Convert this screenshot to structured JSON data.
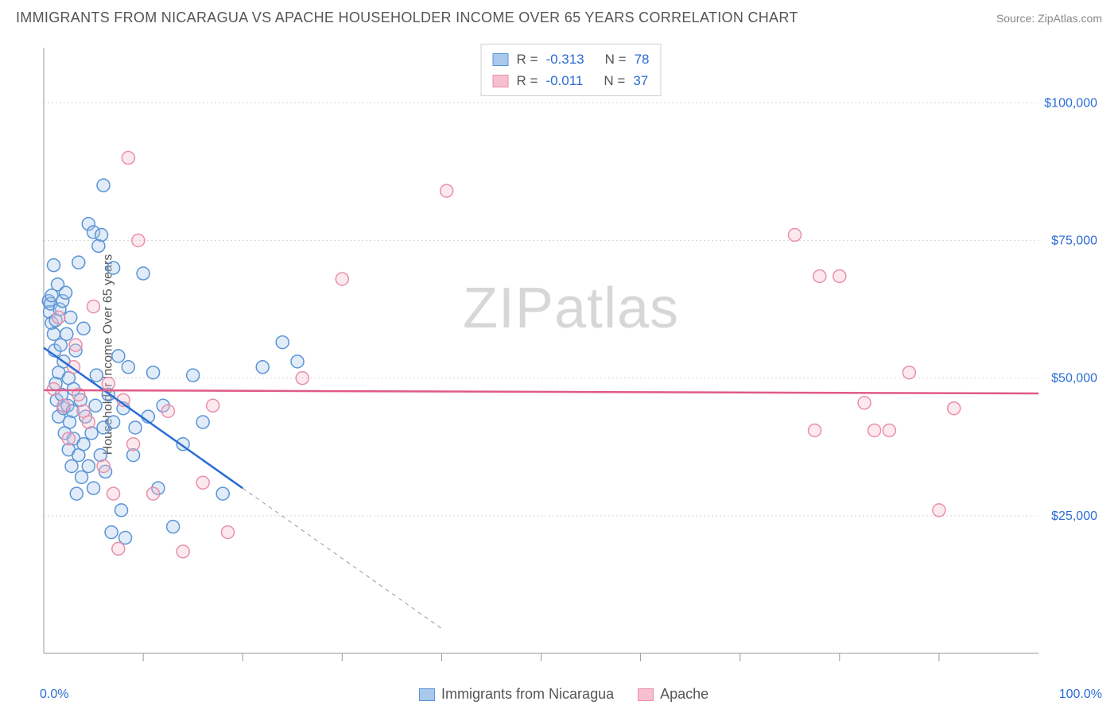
{
  "title": "IMMIGRANTS FROM NICARAGUA VS APACHE HOUSEHOLDER INCOME OVER 65 YEARS CORRELATION CHART",
  "source_label": "Source:",
  "source_name": "ZipAtlas.com",
  "ylabel": "Householder Income Over 65 years",
  "watermark_a": "ZIP",
  "watermark_b": "atlas",
  "chart": {
    "type": "scatter",
    "xlim": [
      0,
      100
    ],
    "ylim": [
      0,
      110000
    ],
    "x_axis_label_left": "0.0%",
    "x_axis_label_right": "100.0%",
    "yticks": [
      {
        "v": 25000,
        "label": "$25,000"
      },
      {
        "v": 50000,
        "label": "$50,000"
      },
      {
        "v": 75000,
        "label": "$75,000"
      },
      {
        "v": 100000,
        "label": "$100,000"
      }
    ],
    "xticks_minor": [
      10,
      20,
      30,
      40,
      50,
      60,
      70,
      80,
      90
    ],
    "grid_color": "#d8d8d8",
    "axis_color": "#999999",
    "background_color": "#ffffff",
    "marker_radius": 8,
    "marker_stroke_width": 1.5,
    "marker_fill_opacity": 0.35,
    "line_width_solid": 2.5,
    "line_width_dash": 1,
    "dash_pattern": "5 5",
    "series": [
      {
        "name": "Immigrants from Nicaragua",
        "fill": "#a9c9ec",
        "stroke": "#5a94d6",
        "line_color": "#2b6cd4",
        "R": "-0.313",
        "N": "78",
        "trend": {
          "x1": 0,
          "y1": 55500,
          "x2": 20,
          "y2": 30000,
          "x_solid_end": 20,
          "x_dash_end": 40,
          "y_dash_end": 4500
        },
        "points": [
          [
            0.5,
            64000
          ],
          [
            0.6,
            62000
          ],
          [
            0.7,
            63500
          ],
          [
            0.8,
            60000
          ],
          [
            0.8,
            65000
          ],
          [
            1.0,
            70500
          ],
          [
            1.0,
            58000
          ],
          [
            1.1,
            55000
          ],
          [
            1.2,
            49000
          ],
          [
            1.2,
            60500
          ],
          [
            1.3,
            46000
          ],
          [
            1.4,
            67000
          ],
          [
            1.5,
            51000
          ],
          [
            1.5,
            43000
          ],
          [
            1.6,
            62500
          ],
          [
            1.7,
            56000
          ],
          [
            1.8,
            47000
          ],
          [
            1.9,
            64000
          ],
          [
            2.0,
            44500
          ],
          [
            2.0,
            53000
          ],
          [
            2.1,
            40000
          ],
          [
            2.2,
            65500
          ],
          [
            2.3,
            58000
          ],
          [
            2.4,
            45000
          ],
          [
            2.5,
            37000
          ],
          [
            2.5,
            50000
          ],
          [
            2.6,
            42000
          ],
          [
            2.7,
            61000
          ],
          [
            2.8,
            34000
          ],
          [
            2.9,
            44000
          ],
          [
            3.0,
            39000
          ],
          [
            3.0,
            48000
          ],
          [
            3.2,
            55000
          ],
          [
            3.3,
            29000
          ],
          [
            3.5,
            36000
          ],
          [
            3.5,
            71000
          ],
          [
            3.7,
            46000
          ],
          [
            3.8,
            32000
          ],
          [
            4.0,
            38000
          ],
          [
            4.0,
            59000
          ],
          [
            4.2,
            43000
          ],
          [
            4.5,
            34000
          ],
          [
            4.5,
            78000
          ],
          [
            4.8,
            40000
          ],
          [
            5.0,
            30000
          ],
          [
            5.0,
            76500
          ],
          [
            5.2,
            45000
          ],
          [
            5.3,
            50500
          ],
          [
            5.5,
            74000
          ],
          [
            5.7,
            36000
          ],
          [
            5.8,
            76000
          ],
          [
            6.0,
            41000
          ],
          [
            6.0,
            85000
          ],
          [
            6.2,
            33000
          ],
          [
            6.5,
            47000
          ],
          [
            6.8,
            22000
          ],
          [
            7.0,
            42000
          ],
          [
            7.0,
            70000
          ],
          [
            7.5,
            54000
          ],
          [
            7.8,
            26000
          ],
          [
            8.0,
            44500
          ],
          [
            8.2,
            21000
          ],
          [
            8.5,
            52000
          ],
          [
            9.0,
            36000
          ],
          [
            9.2,
            41000
          ],
          [
            10.0,
            69000
          ],
          [
            10.5,
            43000
          ],
          [
            11.0,
            51000
          ],
          [
            11.5,
            30000
          ],
          [
            12.0,
            45000
          ],
          [
            13.0,
            23000
          ],
          [
            14.0,
            38000
          ],
          [
            15.0,
            50500
          ],
          [
            16.0,
            42000
          ],
          [
            18.0,
            29000
          ],
          [
            22.0,
            52000
          ],
          [
            24.0,
            56500
          ],
          [
            25.5,
            53000
          ]
        ]
      },
      {
        "name": "Apache",
        "fill": "#f6c0cf",
        "stroke": "#e98fa9",
        "line_color": "#e05a85",
        "R": "-0.011",
        "N": "37",
        "trend": {
          "x1": 0,
          "y1": 47800,
          "x2": 100,
          "y2": 47200,
          "x_solid_end": 100
        },
        "points": [
          [
            1.0,
            48000
          ],
          [
            1.5,
            61000
          ],
          [
            2.0,
            45000
          ],
          [
            2.5,
            39000
          ],
          [
            3.0,
            52000
          ],
          [
            3.2,
            56000
          ],
          [
            3.5,
            47000
          ],
          [
            4.0,
            44000
          ],
          [
            4.5,
            42000
          ],
          [
            5.0,
            63000
          ],
          [
            6.0,
            34000
          ],
          [
            6.5,
            49000
          ],
          [
            7.0,
            29000
          ],
          [
            7.5,
            19000
          ],
          [
            8.0,
            46000
          ],
          [
            8.5,
            90000
          ],
          [
            9.0,
            38000
          ],
          [
            9.5,
            75000
          ],
          [
            11.0,
            29000
          ],
          [
            12.5,
            44000
          ],
          [
            14.0,
            18500
          ],
          [
            16.0,
            31000
          ],
          [
            17.0,
            45000
          ],
          [
            18.5,
            22000
          ],
          [
            26.0,
            50000
          ],
          [
            30.0,
            68000
          ],
          [
            40.5,
            84000
          ],
          [
            75.5,
            76000
          ],
          [
            77.5,
            40500
          ],
          [
            78.0,
            68500
          ],
          [
            80.0,
            68500
          ],
          [
            82.5,
            45500
          ],
          [
            83.5,
            40500
          ],
          [
            85.0,
            40500
          ],
          [
            87.0,
            51000
          ],
          [
            90.0,
            26000
          ],
          [
            91.5,
            44500
          ]
        ]
      }
    ]
  },
  "stats_legend": {
    "R_label": "R =",
    "N_label": "N ="
  }
}
